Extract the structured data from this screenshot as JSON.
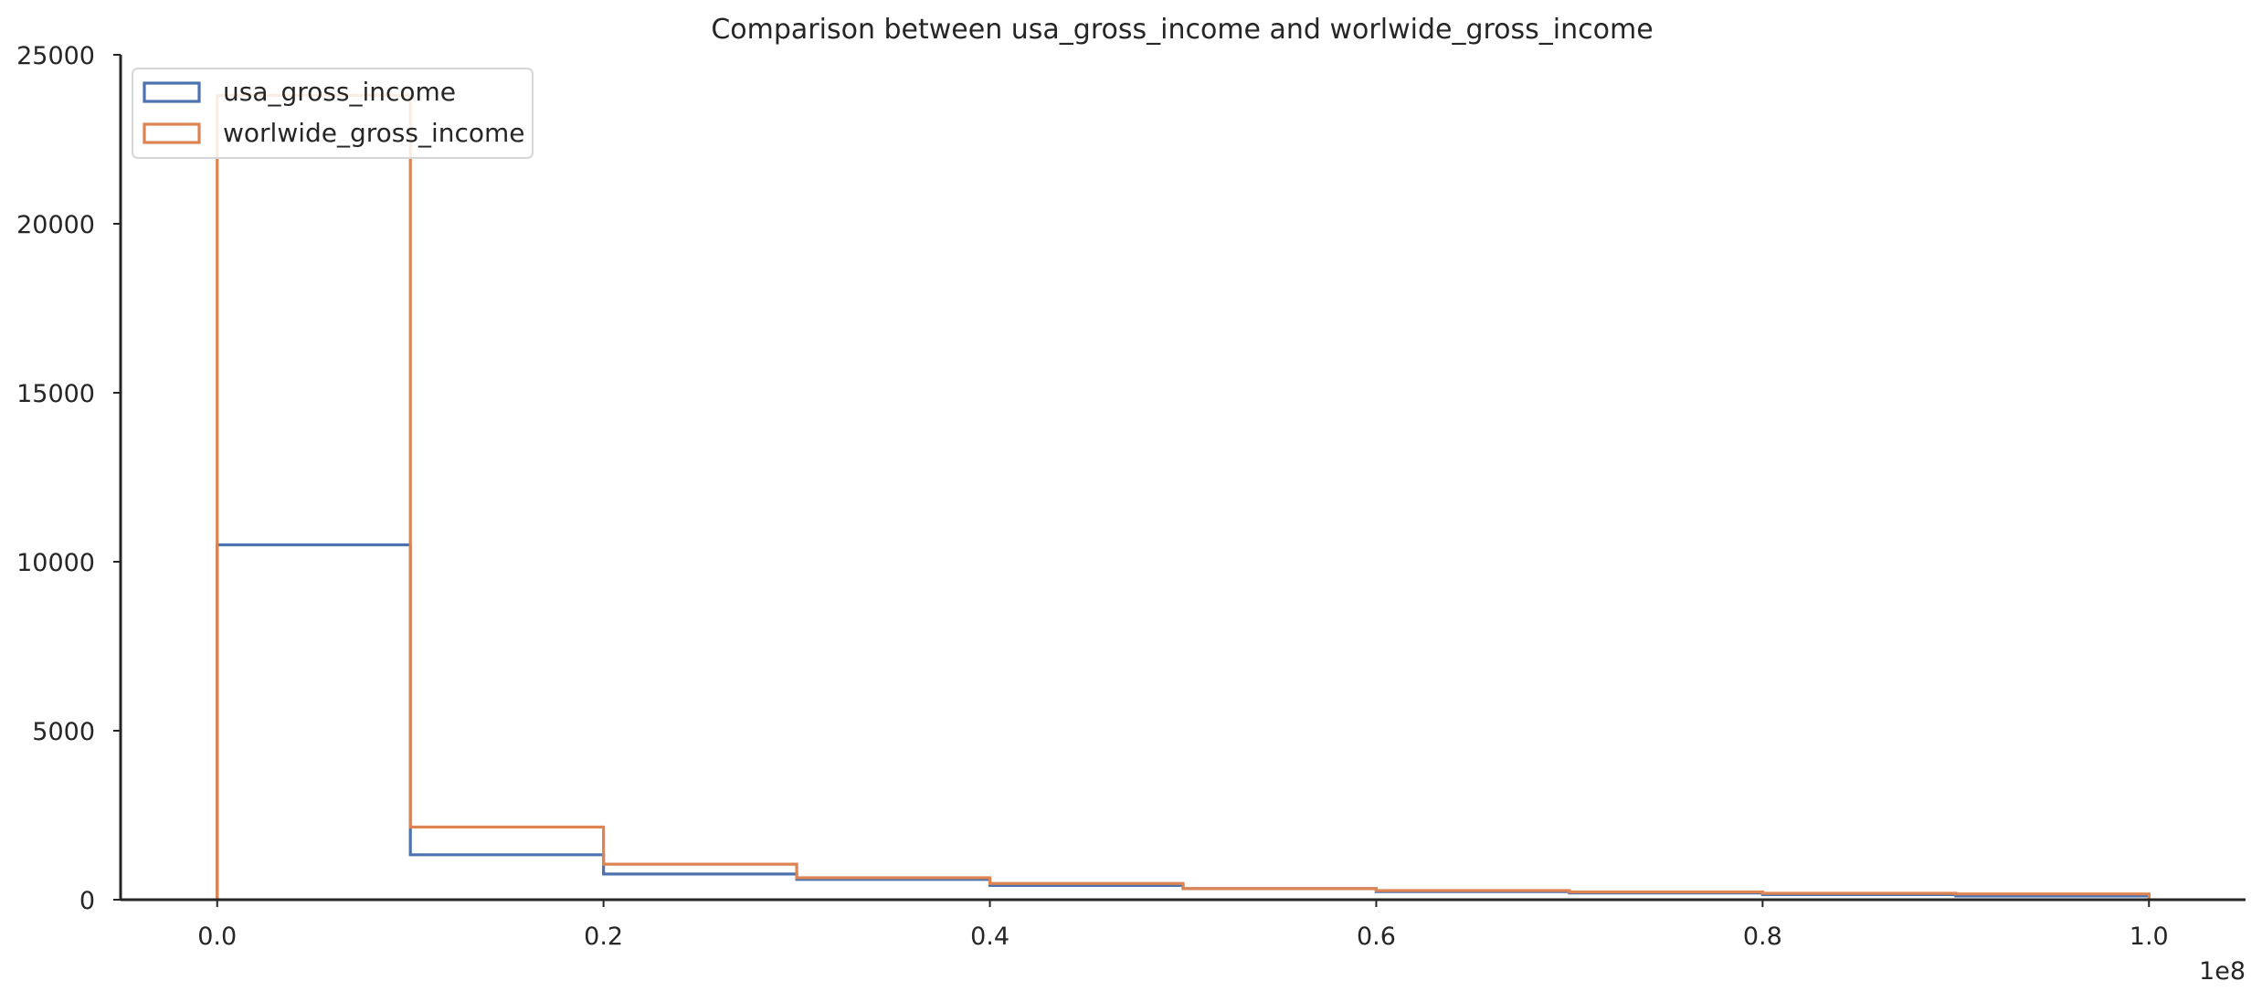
{
  "chart_data": {
    "type": "histogram",
    "title": "Comparison between usa_gross_income and worlwide_gross_income",
    "xlabel": "",
    "ylabel": "",
    "x_offset_label": "1e8",
    "bin_edges": [
      0.0,
      0.1,
      0.2,
      0.3,
      0.4,
      0.5,
      0.6,
      0.7,
      0.8,
      0.9,
      1.0
    ],
    "xlim": [
      -0.05,
      1.05
    ],
    "ylim": [
      0,
      25000
    ],
    "x_ticks": [
      0.0,
      0.2,
      0.4,
      0.6,
      0.8,
      1.0
    ],
    "x_tick_labels": [
      "0.0",
      "0.2",
      "0.4",
      "0.6",
      "0.8",
      "1.0"
    ],
    "y_ticks": [
      0,
      5000,
      10000,
      15000,
      20000,
      25000
    ],
    "y_tick_labels": [
      "0",
      "5000",
      "10000",
      "15000",
      "20000",
      "25000"
    ],
    "grid": false,
    "legend_position": "top-left",
    "series": [
      {
        "name": "usa_gross_income",
        "color": "#4c72b0",
        "values": [
          10500,
          1330,
          760,
          600,
          420,
          330,
          240,
          200,
          150,
          110
        ]
      },
      {
        "name": "worlwide_gross_income",
        "color": "#dd8452",
        "values": [
          23800,
          2150,
          1050,
          650,
          480,
          330,
          270,
          230,
          190,
          170
        ]
      }
    ]
  }
}
